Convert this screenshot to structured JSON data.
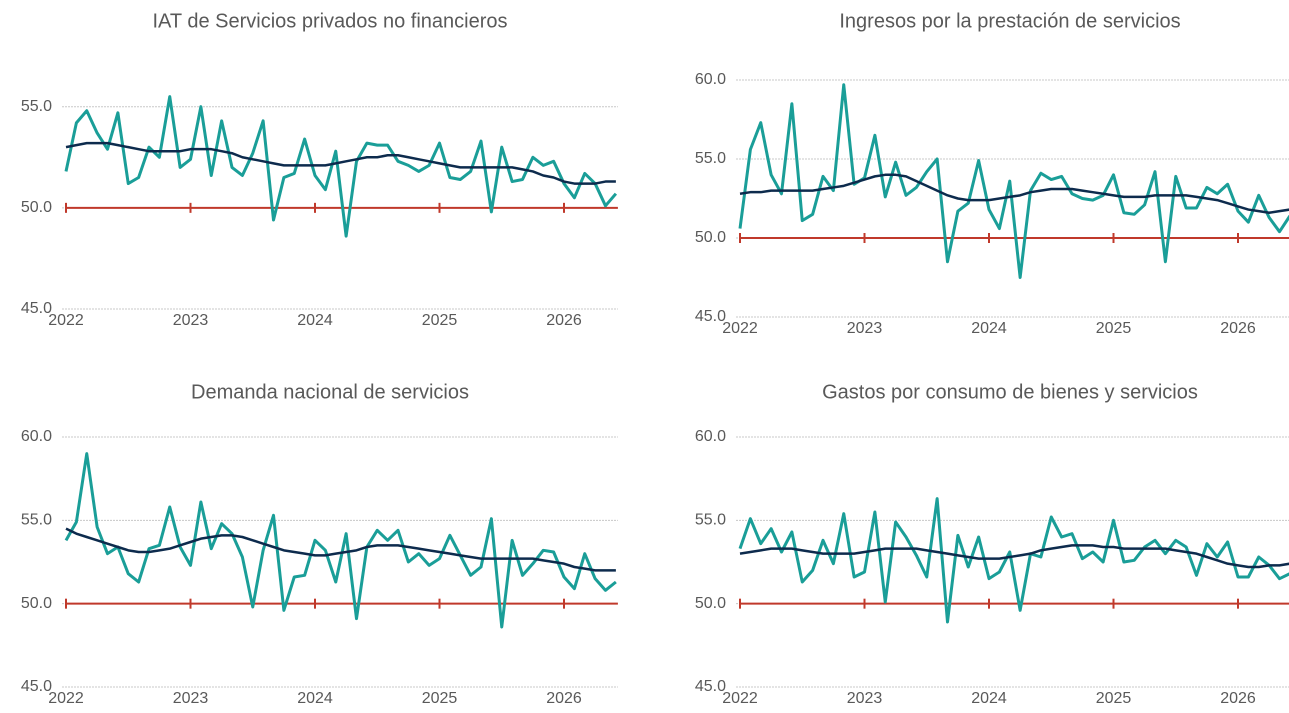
{
  "chart_data": [
    {
      "type": "line",
      "title": "IAT de Servicios privados no financieros",
      "categories": [
        "2022",
        null,
        null,
        null,
        null,
        null,
        null,
        null,
        null,
        null,
        null,
        null,
        "2023",
        null,
        null,
        null,
        null,
        null,
        null,
        null,
        null,
        null,
        null,
        null,
        "2024",
        null,
        null,
        null,
        null,
        null,
        null,
        null,
        null,
        null,
        null,
        null,
        "2025",
        null,
        null,
        null,
        null,
        null,
        null,
        null,
        null,
        null,
        null,
        null,
        "2026",
        null,
        null,
        null,
        null,
        null
      ],
      "ylim": [
        45,
        58
      ],
      "yticks": [
        {
          "value": 45,
          "label": "45.0"
        },
        {
          "value": 50,
          "label": "50.0"
        },
        {
          "value": 55,
          "label": "55.0"
        }
      ],
      "grid": true,
      "hline": {
        "value": 50,
        "color": "#c0392b"
      },
      "series": [
        {
          "color": "#1a9e98",
          "values": [
            51.8,
            54.2,
            54.8,
            53.7,
            52.9,
            54.7,
            51.2,
            51.5,
            53.0,
            52.5,
            55.5,
            52.0,
            52.4,
            55.0,
            51.6,
            54.3,
            52.0,
            51.6,
            52.7,
            54.3,
            49.4,
            51.5,
            51.7,
            53.4,
            51.6,
            50.9,
            52.8,
            48.6,
            52.3,
            53.2,
            53.1,
            53.1,
            52.3,
            52.1,
            51.8,
            52.1,
            53.2,
            51.5,
            51.4,
            51.8,
            53.3,
            49.8,
            53.0,
            51.3,
            51.4,
            52.5,
            52.1,
            52.3,
            51.2,
            50.5,
            51.7,
            51.2,
            50.1,
            50.7
          ]
        },
        {
          "color": "#0d2b4d",
          "values": [
            53.0,
            53.1,
            53.2,
            53.2,
            53.2,
            53.1,
            53.0,
            52.9,
            52.8,
            52.8,
            52.8,
            52.8,
            52.9,
            52.9,
            52.9,
            52.8,
            52.7,
            52.5,
            52.4,
            52.3,
            52.2,
            52.1,
            52.1,
            52.1,
            52.1,
            52.1,
            52.2,
            52.3,
            52.4,
            52.5,
            52.5,
            52.6,
            52.6,
            52.5,
            52.4,
            52.3,
            52.2,
            52.1,
            52.0,
            52.0,
            52.0,
            52.0,
            52.0,
            52.0,
            51.9,
            51.8,
            51.6,
            51.5,
            51.3,
            51.2,
            51.2,
            51.2,
            51.3,
            51.3
          ]
        }
      ]
    },
    {
      "type": "line",
      "title": "Ingresos por la prestación de servicios",
      "categories": [
        "2022",
        null,
        null,
        null,
        null,
        null,
        null,
        null,
        null,
        null,
        null,
        null,
        "2023",
        null,
        null,
        null,
        null,
        null,
        null,
        null,
        null,
        null,
        null,
        null,
        "2024",
        null,
        null,
        null,
        null,
        null,
        null,
        null,
        null,
        null,
        null,
        null,
        "2025",
        null,
        null,
        null,
        null,
        null,
        null,
        null,
        null,
        null,
        null,
        null,
        "2026",
        null,
        null,
        null,
        null,
        null
      ],
      "ylim": [
        45,
        60
      ],
      "yticks": [
        {
          "value": 45,
          "label": "45.0"
        },
        {
          "value": 50,
          "label": "50.0"
        },
        {
          "value": 55,
          "label": "55.0"
        },
        {
          "value": 60,
          "label": "60.0"
        }
      ],
      "grid": true,
      "hline": {
        "value": 50,
        "color": "#c0392b"
      },
      "series": [
        {
          "color": "#1a9e98",
          "values": [
            50.6,
            55.6,
            57.3,
            54.0,
            52.8,
            58.5,
            51.1,
            51.5,
            53.9,
            53.0,
            59.7,
            53.4,
            53.8,
            56.5,
            52.6,
            54.8,
            52.7,
            53.2,
            54.2,
            55.0,
            48.5,
            51.7,
            52.2,
            54.9,
            51.8,
            50.6,
            53.6,
            47.5,
            53.0,
            54.1,
            53.7,
            53.9,
            52.8,
            52.5,
            52.4,
            52.7,
            54.0,
            51.6,
            51.5,
            52.1,
            54.2,
            48.5,
            53.9,
            51.9,
            51.9,
            53.2,
            52.8,
            53.4,
            51.7,
            51.0,
            52.7,
            51.3,
            50.4,
            51.4
          ]
        },
        {
          "color": "#0d2b4d",
          "values": [
            52.8,
            52.9,
            52.9,
            53.0,
            53.0,
            53.0,
            53.0,
            53.0,
            53.1,
            53.2,
            53.3,
            53.5,
            53.7,
            53.9,
            54.0,
            54.0,
            53.9,
            53.6,
            53.3,
            53.0,
            52.7,
            52.5,
            52.4,
            52.4,
            52.4,
            52.5,
            52.6,
            52.7,
            52.9,
            53.0,
            53.1,
            53.1,
            53.1,
            53.0,
            52.9,
            52.8,
            52.7,
            52.6,
            52.6,
            52.6,
            52.7,
            52.7,
            52.7,
            52.7,
            52.6,
            52.5,
            52.4,
            52.2,
            52.0,
            51.8,
            51.7,
            51.6,
            51.7,
            51.8
          ]
        }
      ]
    },
    {
      "type": "line",
      "title": "Demanda nacional de servicios",
      "categories": [
        "2022",
        null,
        null,
        null,
        null,
        null,
        null,
        null,
        null,
        null,
        null,
        null,
        "2023",
        null,
        null,
        null,
        null,
        null,
        null,
        null,
        null,
        null,
        null,
        null,
        "2024",
        null,
        null,
        null,
        null,
        null,
        null,
        null,
        null,
        null,
        null,
        null,
        "2025",
        null,
        null,
        null,
        null,
        null,
        null,
        null,
        null,
        null,
        null,
        null,
        "2026",
        null,
        null,
        null,
        null,
        null
      ],
      "ylim": [
        45,
        60
      ],
      "yticks": [
        {
          "value": 45,
          "label": "45.0"
        },
        {
          "value": 50,
          "label": "50.0"
        },
        {
          "value": 55,
          "label": "55.0"
        },
        {
          "value": 60,
          "label": "60.0"
        }
      ],
      "grid": true,
      "hline": {
        "value": 50,
        "color": "#c0392b"
      },
      "series": [
        {
          "color": "#1a9e98",
          "values": [
            53.8,
            54.9,
            59.0,
            54.6,
            53.0,
            53.4,
            51.8,
            51.3,
            53.3,
            53.5,
            55.8,
            53.4,
            52.3,
            56.1,
            53.3,
            54.8,
            54.2,
            52.8,
            49.8,
            53.2,
            55.3,
            49.6,
            51.6,
            51.7,
            53.8,
            53.2,
            51.3,
            54.2,
            49.1,
            53.4,
            54.4,
            53.8,
            54.4,
            52.5,
            53.0,
            52.3,
            52.7,
            54.1,
            52.9,
            51.7,
            52.2,
            55.1,
            48.6,
            53.8,
            51.7,
            52.4,
            53.2,
            53.1,
            51.6,
            50.9,
            53.0,
            51.5,
            50.8,
            51.3
          ]
        },
        {
          "color": "#0d2b4d",
          "values": [
            54.5,
            54.2,
            54.0,
            53.8,
            53.6,
            53.4,
            53.2,
            53.1,
            53.1,
            53.2,
            53.3,
            53.5,
            53.7,
            53.9,
            54.0,
            54.1,
            54.1,
            54.0,
            53.8,
            53.6,
            53.4,
            53.2,
            53.1,
            53.0,
            52.9,
            52.9,
            53.0,
            53.1,
            53.2,
            53.4,
            53.5,
            53.5,
            53.5,
            53.4,
            53.3,
            53.2,
            53.1,
            53.0,
            52.9,
            52.8,
            52.7,
            52.7,
            52.7,
            52.7,
            52.7,
            52.7,
            52.6,
            52.5,
            52.4,
            52.2,
            52.1,
            52.0,
            52.0,
            52.0
          ]
        }
      ]
    },
    {
      "type": "line",
      "title": "Gastos por consumo de bienes y servicios",
      "categories": [
        "2022",
        null,
        null,
        null,
        null,
        null,
        null,
        null,
        null,
        null,
        null,
        null,
        "2023",
        null,
        null,
        null,
        null,
        null,
        null,
        null,
        null,
        null,
        null,
        null,
        "2024",
        null,
        null,
        null,
        null,
        null,
        null,
        null,
        null,
        null,
        null,
        null,
        "2025",
        null,
        null,
        null,
        null,
        null,
        null,
        null,
        null,
        null,
        null,
        null,
        "2026",
        null,
        null,
        null,
        null,
        null
      ],
      "ylim": [
        45,
        60
      ],
      "yticks": [
        {
          "value": 45,
          "label": "45.0"
        },
        {
          "value": 50,
          "label": "50.0"
        },
        {
          "value": 55,
          "label": "55.0"
        },
        {
          "value": 60,
          "label": "60.0"
        }
      ],
      "grid": true,
      "hline": {
        "value": 50,
        "color": "#c0392b"
      },
      "series": [
        {
          "color": "#1a9e98",
          "values": [
            53.3,
            55.1,
            53.6,
            54.5,
            53.1,
            54.3,
            51.3,
            52.0,
            53.8,
            52.4,
            55.4,
            51.6,
            51.9,
            55.5,
            50.1,
            54.9,
            54.0,
            52.9,
            51.6,
            56.3,
            48.9,
            54.1,
            52.2,
            54.0,
            51.5,
            51.9,
            53.1,
            49.6,
            53.0,
            52.8,
            55.2,
            54.0,
            54.2,
            52.7,
            53.1,
            52.5,
            55.0,
            52.5,
            52.6,
            53.4,
            53.8,
            53.0,
            53.8,
            53.4,
            51.7,
            53.6,
            52.8,
            53.7,
            51.6,
            51.6,
            52.8,
            52.3,
            51.5,
            51.8
          ]
        },
        {
          "color": "#0d2b4d",
          "values": [
            53.0,
            53.1,
            53.2,
            53.3,
            53.3,
            53.3,
            53.2,
            53.1,
            53.0,
            53.0,
            53.0,
            53.0,
            53.1,
            53.2,
            53.3,
            53.3,
            53.3,
            53.3,
            53.2,
            53.1,
            53.0,
            52.9,
            52.8,
            52.7,
            52.7,
            52.7,
            52.8,
            52.9,
            53.0,
            53.2,
            53.3,
            53.4,
            53.5,
            53.5,
            53.5,
            53.4,
            53.4,
            53.3,
            53.3,
            53.3,
            53.3,
            53.3,
            53.2,
            53.1,
            53.0,
            52.8,
            52.6,
            52.4,
            52.3,
            52.2,
            52.2,
            52.3,
            52.3,
            52.4
          ]
        }
      ]
    }
  ]
}
